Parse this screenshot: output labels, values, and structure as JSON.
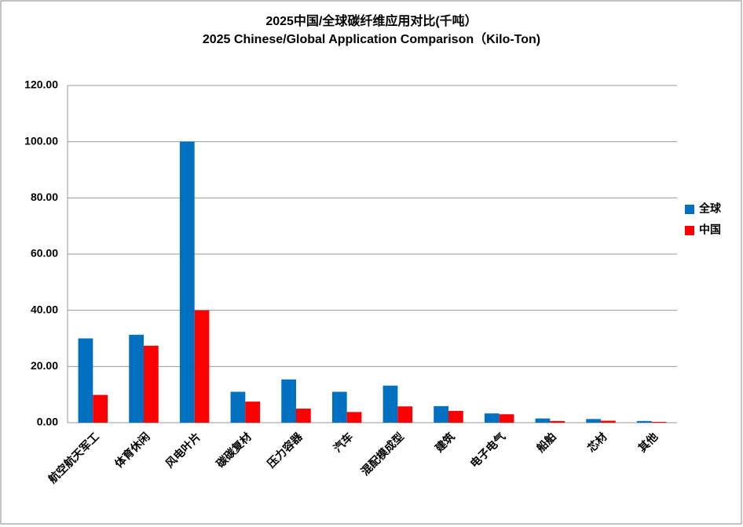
{
  "chart_data": {
    "type": "bar",
    "title": "2025中国/全球碳纤维应用对比(千吨）",
    "subtitle": "2025 Chinese/Global Application Comparison（Kilo-Ton)",
    "categories": [
      "航空航天军工",
      "体育休闲",
      "风电叶片",
      "碳碳复材",
      "压力容器",
      "汽车",
      "混配模成型",
      "建筑",
      "电子电气",
      "船舶",
      "芯材",
      "其他"
    ],
    "series": [
      {
        "name": "全球",
        "color": "#0070c0",
        "values": [
          30,
          31.3,
          100,
          11,
          15.4,
          11,
          13.2,
          5.9,
          3.3,
          1.5,
          1.3,
          0.6
        ]
      },
      {
        "name": "中国",
        "color": "#ff0000",
        "values": [
          9.9,
          27.4,
          40,
          7.5,
          5,
          3.8,
          5.8,
          4.2,
          3,
          0.6,
          0.7,
          0.3
        ]
      }
    ],
    "ylim": [
      0,
      120
    ],
    "yticks": [
      {
        "value": 0,
        "label": "0.00"
      },
      {
        "value": 20,
        "label": "20.00"
      },
      {
        "value": 40,
        "label": "40.00"
      },
      {
        "value": 60,
        "label": "60.00"
      },
      {
        "value": 80,
        "label": "80.00"
      },
      {
        "value": 100,
        "label": "100.00"
      },
      {
        "value": 120,
        "label": "120.00"
      }
    ],
    "grid": true,
    "legend": "right"
  }
}
